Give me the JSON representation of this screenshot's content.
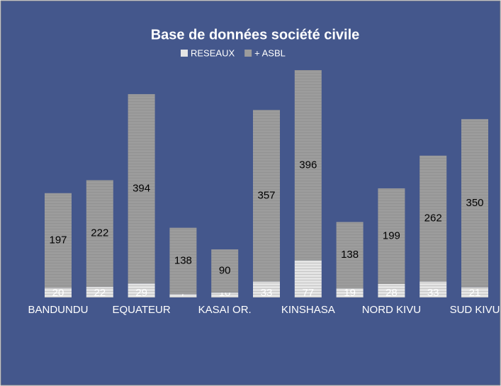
{
  "chart_data": {
    "type": "stacked_bar",
    "title": "Base de données société civile",
    "categories": [
      "BANDUNDU",
      null,
      "EQUATEUR",
      null,
      "KASAI OR.",
      null,
      "KINSHASA",
      null,
      "NORD KIVU",
      null,
      "SUD KIVU"
    ],
    "series": [
      {
        "name": "RESEAUX",
        "color": "#e4e4e4",
        "values": [
          20,
          22,
          29,
          7,
          10,
          33,
          77,
          19,
          28,
          33,
          21
        ]
      },
      {
        "name": "+ ASBL",
        "color": "#9c9c9c",
        "values": [
          197,
          222,
          394,
          138,
          90,
          357,
          396,
          138,
          199,
          262,
          350
        ]
      }
    ],
    "legend": "top"
  }
}
